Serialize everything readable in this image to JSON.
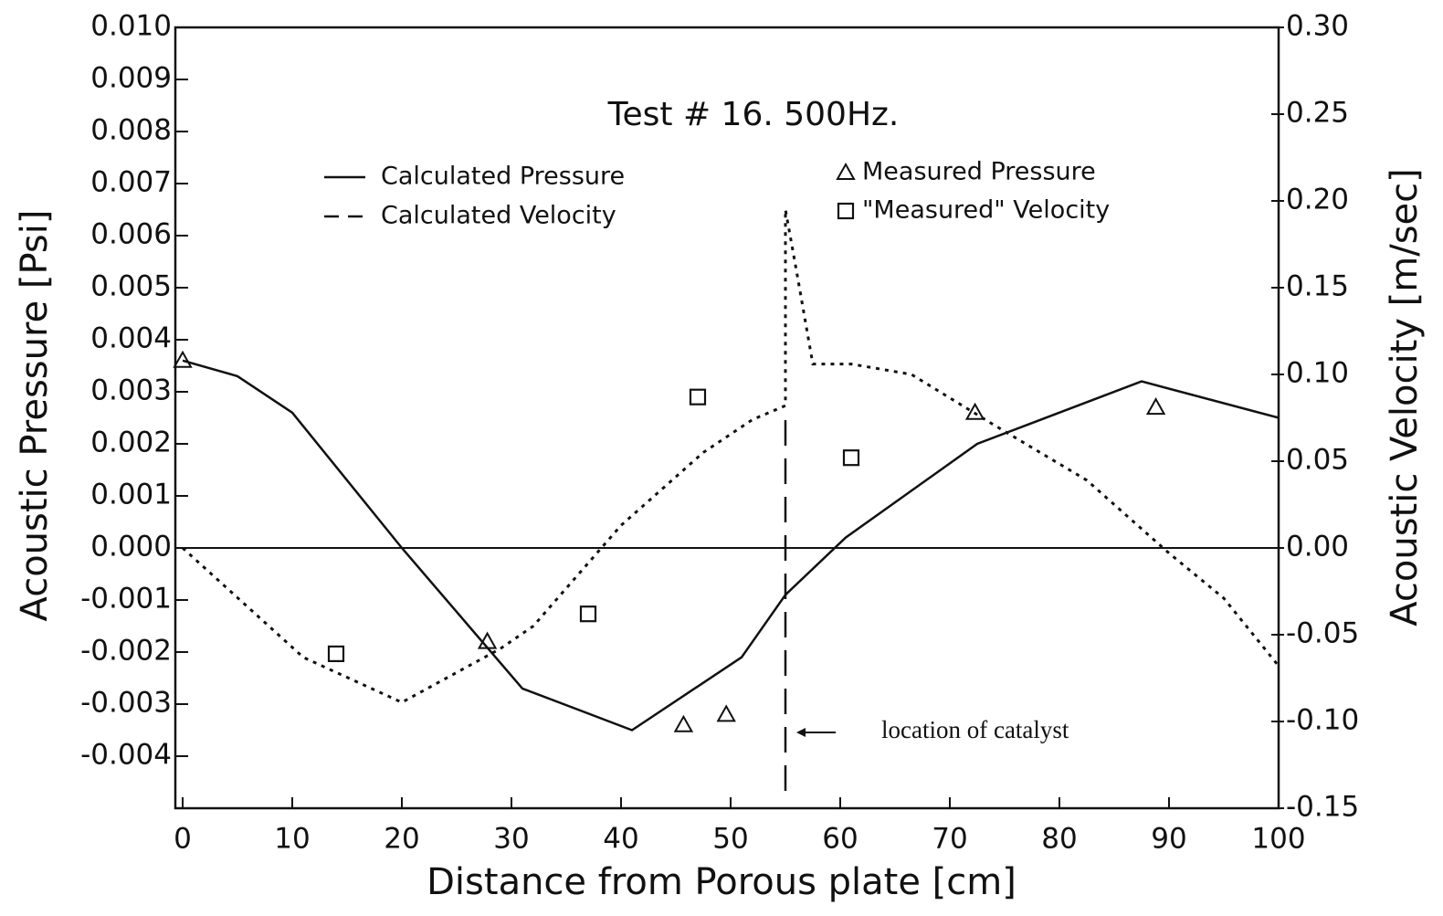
{
  "chart_data": {
    "type": "line",
    "title": "Test # 16. 500Hz.",
    "xlabel": "Distance from Porous plate [cm]",
    "ylabel": "Acoustic Pressure [Psi]",
    "y2label": "Acoustic Velocity [m/sec]",
    "xlim": [
      0,
      100
    ],
    "xticks": [
      0,
      10,
      20,
      30,
      40,
      50,
      60,
      70,
      80,
      90,
      100
    ],
    "ylim": [
      -0.005,
      0.01
    ],
    "yticks": [
      {
        "value": 0.01,
        "label": "0.010"
      },
      0.009,
      0.008,
      0.007,
      0.006,
      0.005,
      0.004,
      0.003,
      0.002,
      0.001,
      {
        "value": 0,
        "label": "0.000"
      },
      -0.001,
      -0.002,
      -0.003,
      -0.004
    ],
    "y2lim": [
      -0.15,
      0.3
    ],
    "y2ticks": [
      {
        "value": 0.3,
        "label": "0.30"
      },
      0.25,
      {
        "value": 0.2,
        "label": "0.20"
      },
      0.15,
      {
        "value": 0.1,
        "label": "0.10"
      },
      0.05,
      {
        "value": 0,
        "label": "0.00"
      },
      -0.05,
      {
        "value": -0.1,
        "label": "-0.10"
      },
      -0.15
    ],
    "series": [
      {
        "name": "Calculated Pressure",
        "color": "#111111",
        "style": "solid",
        "x": [
          0,
          5,
          10,
          20,
          31,
          41,
          51,
          55,
          60.5,
          72.5,
          87.5,
          100
        ],
        "values": [
          0.0036,
          0.0033,
          0.0026,
          0.0,
          -0.0027,
          -0.0035,
          -0.0021,
          -0.0009,
          0.0002,
          0.002,
          0.0032,
          0.0025
        ]
      },
      {
        "name": "Calculated Velocity",
        "color": "#111111",
        "style": "dotted",
        "axis": "y2",
        "x": [
          0,
          11,
          20,
          29,
          32,
          40,
          47.5,
          52,
          55,
          55,
          56,
          57.5,
          61,
          66.5,
          74,
          82.5,
          90,
          95,
          100
        ],
        "values": [
          0.0,
          -0.063,
          -0.089,
          -0.058,
          -0.045,
          0.013,
          0.055,
          0.074,
          0.082,
          0.195,
          0.16,
          0.106,
          0.106,
          0.1,
          0.071,
          0.039,
          -0.003,
          -0.029,
          -0.068
        ]
      },
      {
        "name": "Measured Pressure",
        "color": "#111111",
        "style": "triangle",
        "x": [
          0,
          27.8,
          45.7,
          49.6,
          72.3,
          88.8
        ],
        "values": [
          0.0036,
          -0.0018,
          -0.0034,
          -0.0032,
          0.0026,
          0.0027
        ]
      },
      {
        "name": "\"Measured\" Velocity",
        "color": "#111111",
        "style": "square",
        "axis": "y2",
        "x": [
          14,
          37,
          47,
          61
        ],
        "values": [
          -0.061,
          -0.038,
          0.087,
          0.052
        ]
      }
    ],
    "annotation": {
      "text": "location of catalyst",
      "x": 55
    }
  }
}
